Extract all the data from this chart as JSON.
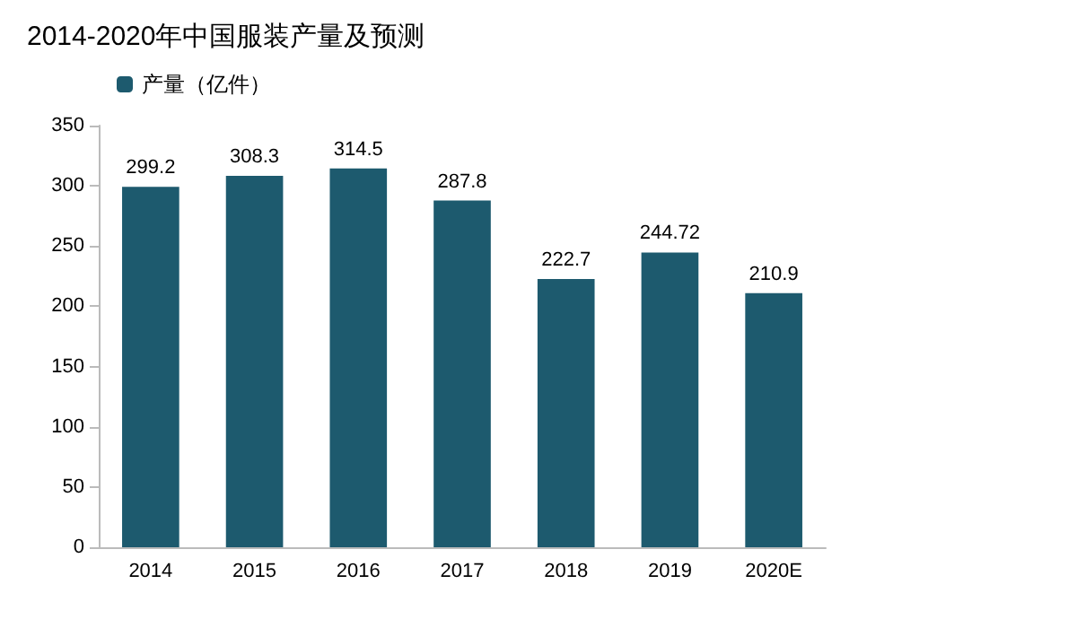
{
  "chart_data": {
    "type": "bar",
    "title": "2014-2020年中国服装产量及预测",
    "categories": [
      "2014",
      "2015",
      "2016",
      "2017",
      "2018",
      "2019",
      "2020E"
    ],
    "series": [
      {
        "name": "产量（亿件）",
        "color": "#1d5a6e",
        "values": [
          299.2,
          308.3,
          314.5,
          287.8,
          222.7,
          244.72,
          210.9
        ]
      }
    ],
    "ylim": [
      0,
      350
    ],
    "yticks": [
      0,
      50,
      100,
      150,
      200,
      250,
      300,
      350
    ],
    "data_labels": true,
    "grid": false,
    "legend": "top left"
  }
}
